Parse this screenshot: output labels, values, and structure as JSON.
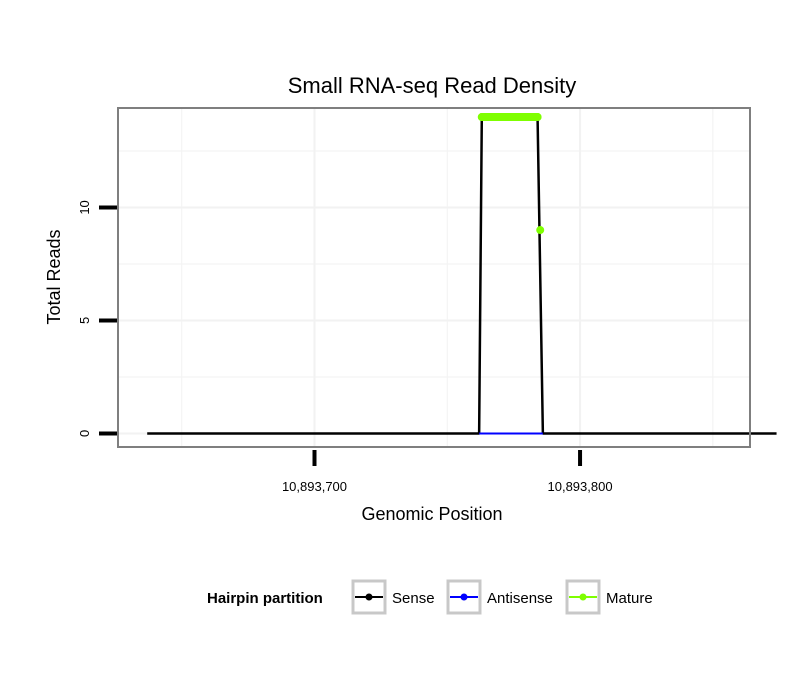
{
  "chart_data": {
    "type": "line",
    "title": "Small RNA-seq Read Density",
    "xlabel": "Genomic Position",
    "ylabel": "Total Reads",
    "xlim": [
      10893626,
      10893864
    ],
    "ylim": [
      -0.6,
      14.4
    ],
    "xticks": [
      10893700,
      10893800
    ],
    "xtick_labels": [
      "10,893,700",
      "10,893,800"
    ],
    "yticks": [
      0,
      5,
      10
    ],
    "ytick_labels": [
      "0",
      "5",
      "10"
    ],
    "grid": true,
    "legend": {
      "title": "Hairpin partition",
      "position": "bottom",
      "entries": [
        {
          "label": "Sense",
          "color": "#000000"
        },
        {
          "label": "Antisense",
          "color": "#0000ff"
        },
        {
          "label": "Mature",
          "color": "#7fff00"
        }
      ]
    },
    "series": [
      {
        "name": "Sense",
        "color": "#000000",
        "x": [
          10893637,
          10893762,
          10893763,
          10893784,
          10893786,
          10893874
        ],
        "y": [
          0,
          0,
          14,
          14,
          0,
          0
        ]
      },
      {
        "name": "Antisense",
        "color": "#0000ff",
        "x": [
          10893762,
          10893786
        ],
        "y": [
          0,
          0
        ]
      },
      {
        "name": "Mature",
        "color": "#7fff00",
        "x": [
          10893763,
          10893764,
          10893765,
          10893766,
          10893767,
          10893768,
          10893769,
          10893770,
          10893771,
          10893772,
          10893773,
          10893774,
          10893775,
          10893776,
          10893777,
          10893778,
          10893779,
          10893780,
          10893781,
          10893782,
          10893783,
          10893784,
          10893785
        ],
        "y": [
          14,
          14,
          14,
          14,
          14,
          14,
          14,
          14,
          14,
          14,
          14,
          14,
          14,
          14,
          14,
          14,
          14,
          14,
          14,
          14,
          14,
          14,
          9
        ]
      }
    ]
  }
}
